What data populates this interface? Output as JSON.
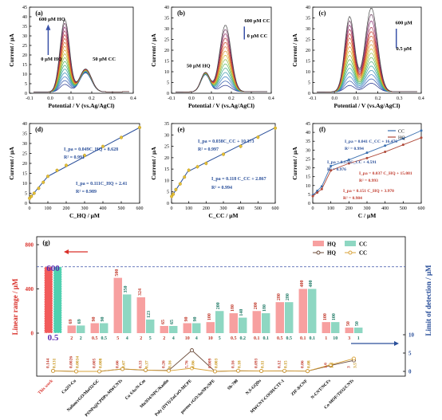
{
  "chart_data": [
    {
      "panel": "(a)",
      "type": "line",
      "xlabel": "Potential / V (vs.Ag/AgCl)",
      "ylabel": "Current / μA",
      "xlim": [
        -0.1,
        0.4
      ],
      "ylim": [
        0,
        45
      ],
      "xticks": [
        "-0.1",
        "0.0",
        "0.1",
        "0.2",
        "0.3",
        "0.4"
      ],
      "yticks": [
        "0",
        "5",
        "10",
        "15",
        "20",
        "25",
        "30",
        "35",
        "40",
        "45"
      ],
      "annotations": [
        "600 μM HQ",
        "0 μM HQ",
        "50 μM CC"
      ],
      "peak_x": [
        0.07,
        0.17
      ],
      "peak1_heights": [
        4,
        6,
        8,
        10,
        12,
        14,
        16,
        18,
        20,
        22,
        24,
        26,
        28,
        30,
        32,
        34,
        36,
        38
      ],
      "peak2_heights": [
        10,
        10.2,
        10.4,
        10.6,
        10.8,
        11,
        11.1,
        11.2,
        11.3,
        11.4,
        11.5,
        11.6,
        11.7,
        11.8,
        11.9,
        12,
        12,
        12
      ]
    },
    {
      "panel": "(b)",
      "type": "line",
      "xlabel": "Potential / V (vs.Ag/AgCl)",
      "ylabel": "Current / μA",
      "xlim": [
        -0.1,
        0.4
      ],
      "ylim": [
        0,
        40
      ],
      "xticks": [
        "-0.1",
        "0.0",
        "0.1",
        "0.2",
        "0.3",
        "0.4"
      ],
      "yticks": [
        "0",
        "5",
        "10",
        "15",
        "20",
        "25",
        "30",
        "35",
        "40"
      ],
      "annotations": [
        "600 μM CC",
        "0 μM CC",
        "50 μM HQ"
      ],
      "peak_x": [
        0.07,
        0.17
      ],
      "peak1_heights": [
        8,
        8.1,
        8.2,
        8.3,
        8.4,
        8.5,
        8.6,
        8.7,
        8.8,
        8.9,
        9,
        9,
        9,
        9,
        9
      ],
      "peak2_heights": [
        3,
        5,
        7,
        9,
        11,
        13,
        15,
        17,
        19,
        21,
        23,
        25,
        27,
        29,
        31
      ]
    },
    {
      "panel": "(c)",
      "type": "line",
      "xlabel": "Potential / V (vs.Ag/AgCl)",
      "ylabel": "Current / μA",
      "xlim": [
        -0.1,
        0.4
      ],
      "ylim": [
        0,
        40
      ],
      "xticks": [
        "-0.1",
        "0.0",
        "0.1",
        "0.2",
        "0.3",
        "0.4"
      ],
      "yticks": [
        "0",
        "5",
        "10",
        "15",
        "20",
        "25",
        "30",
        "35",
        "40"
      ],
      "annotations": [
        "600 μM",
        "0.5 μM"
      ],
      "peak_x": [
        0.07,
        0.17
      ],
      "peak1_heights": [
        3,
        5,
        7,
        9,
        11,
        13,
        15,
        17,
        19,
        21,
        23,
        25,
        27,
        29,
        31,
        33,
        35
      ],
      "peak2_heights": [
        4,
        6,
        8,
        10,
        12,
        14,
        16,
        18,
        20,
        22,
        24,
        26,
        28,
        30,
        33,
        36,
        39
      ]
    },
    {
      "panel": "(d)",
      "type": "scatter",
      "xlabel": "C_HQ / μM",
      "ylabel": "Current / μA",
      "xlim": [
        0,
        600
      ],
      "ylim": [
        0,
        40
      ],
      "xticks": [
        "0",
        "100",
        "200",
        "300",
        "400",
        "500",
        "600"
      ],
      "yticks": [
        "0",
        "5",
        "10",
        "15",
        "20",
        "25",
        "30",
        "35",
        "40"
      ],
      "x": [
        0.5,
        10,
        25,
        50,
        75,
        100,
        150,
        200,
        300,
        400,
        500,
        600
      ],
      "y": [
        2.5,
        3.5,
        5,
        7.5,
        10.5,
        13.5,
        16.5,
        19,
        24,
        28.5,
        33,
        38
      ],
      "fit_low": {
        "x": [
          0,
          100
        ],
        "y": [
          2.41,
          13.51
        ]
      },
      "fit_high": {
        "x": [
          100,
          600
        ],
        "y": [
          13.5,
          38
        ]
      },
      "equations": [
        "I_pa = 0.049C_HQ + 8.628",
        "R² = 0.991",
        "I_pa = 0.111C_HQ + 2.41",
        "R² = 0.989"
      ]
    },
    {
      "panel": "(e)",
      "type": "scatter",
      "xlabel": "C_CC / μM",
      "ylabel": "Current / μA",
      "xlim": [
        0,
        600
      ],
      "ylim": [
        0,
        35
      ],
      "xticks": [
        "0",
        "100",
        "200",
        "300",
        "400",
        "500",
        "600"
      ],
      "yticks": [
        "0",
        "5",
        "10",
        "15",
        "20",
        "25",
        "30",
        "35"
      ],
      "x": [
        0.5,
        10,
        25,
        50,
        75,
        100,
        150,
        200,
        300,
        400,
        500,
        600
      ],
      "y": [
        3,
        4,
        6,
        8.5,
        11.5,
        14.5,
        16,
        17.5,
        21.5,
        25,
        29,
        33
      ],
      "fit_low": {
        "x": [
          0,
          100
        ],
        "y": [
          2.867,
          14.667
        ]
      },
      "fit_high": {
        "x": [
          100,
          600
        ],
        "y": [
          14.1,
          33.2
        ]
      },
      "equations": [
        "I_pa = 0.038C_CC + 10.373",
        "R² = 0.997",
        "I_pa = 0.118 C_CC + 2.867",
        "R² = 0.994"
      ]
    },
    {
      "panel": "(f)",
      "type": "scatter",
      "xlabel": "C / μM",
      "ylabel": "Current / μA",
      "xlim": [
        0,
        600
      ],
      "ylim": [
        0,
        45
      ],
      "xticks": [
        "0",
        "100",
        "200",
        "300",
        "400",
        "500",
        "600"
      ],
      "yticks": [
        "0",
        "5",
        "10",
        "15",
        "20",
        "25",
        "30",
        "35",
        "40",
        "45"
      ],
      "legend": [
        "CC",
        "HQ"
      ],
      "series": [
        {
          "name": "CC",
          "color": "#3a6fb0",
          "x": [
            0.5,
            25,
            50,
            100,
            200,
            300,
            400,
            500,
            600
          ],
          "y": [
            4.6,
            7,
            9.5,
            21,
            24.5,
            28.5,
            32.5,
            36.5,
            41
          ]
        },
        {
          "name": "HQ",
          "color": "#b04a3a",
          "x": [
            0.5,
            25,
            50,
            100,
            200,
            300,
            400,
            500,
            600
          ],
          "y": [
            4,
            6,
            8,
            18.5,
            22.5,
            25.5,
            29,
            33,
            37
          ]
        }
      ],
      "equations": [
        "I_pa = 0.041 C_CC + 16.476",
        "R² = 0.994",
        "I_pa = 0.171C_CC + 4.591",
        "R² = 0.976",
        "I_pa = 0.037 C_HQ + 15.081",
        "R² = 0.993",
        "I_pa = 0.151 C_HQ + 3.970",
        "R² = 0.984"
      ]
    },
    {
      "panel": "(g)",
      "type": "bar",
      "ylabel_left": "Linear range / μM",
      "ylabel_right": "Limit of detection / μM",
      "top_axis": {
        "ylim": [
          0,
          800
        ],
        "ticks": [
          "0",
          "400",
          "800"
        ]
      },
      "bottom_axis": {
        "ylim": [
          0,
          10
        ],
        "ticks": [
          "0",
          "5",
          "10"
        ]
      },
      "legend": [
        "HQ",
        "CC",
        "HQ",
        "CC"
      ],
      "highlight": {
        "upper": "600",
        "lower": "0.5"
      },
      "categories": [
        "This work",
        "Cu2O-Cu",
        "Nafion/rGO/MoO2/GC",
        "PSNPs@CPDPs-MWCNTs",
        "Cu SAs/N-Cm",
        "Mn3O4/NPC/Kaolin",
        "Poly (DYI)/ZnCoO-MCPE",
        "porous rGO/AuNPs/SPE",
        "Sh-700",
        "N,S-GQDs",
        "MWCNT-COOH/CTF-1",
        "ZIF-8/CNF",
        "N-CNT/NCFs",
        "Co-MOF/TiO2/CNTs"
      ],
      "range_hq_max": [
        600,
        69,
        90,
        500,
        324,
        65,
        90,
        100,
        180,
        200,
        280,
        400,
        100,
        50
      ],
      "range_cc_max": [
        600,
        69,
        90,
        350,
        123,
        65,
        90,
        200,
        140,
        180,
        280,
        400,
        100,
        50
      ],
      "range_hq_min": [
        0.5,
        2,
        0.5,
        5,
        2,
        2,
        10,
        10,
        0.5,
        0.1,
        0.5,
        0.1,
        1,
        3
      ],
      "range_cc_min": [
        0.5,
        2,
        0.5,
        4,
        5,
        4,
        4,
        5,
        0.2,
        0.1,
        0.5,
        0.1,
        10,
        1
      ],
      "lod_hq": [
        0.144,
        0.0026,
        0.005,
        0.66,
        0.33,
        0.26,
        5.76,
        0.009,
        0.16,
        0.093,
        0.12,
        0.06,
        1.6,
        3
      ],
      "lod_cc": [
        0.131,
        0.0034,
        0.008,
        0.67,
        0.37,
        0.16,
        0.86,
        0.003,
        0.18,
        0.11,
        0.15,
        0.08,
        1.8,
        3.5
      ],
      "lod_labels_hq": [
        "0.144",
        "0.0026",
        "0.005",
        "0.66",
        "0.33",
        "0.26",
        "5.76",
        "0.009",
        "0.16",
        "0.093",
        "0.12",
        "0.06",
        "1.6",
        "3"
      ],
      "lod_labels_cc": [
        "0.131",
        "0.0034",
        "0.008",
        "0.67",
        "0.37",
        "0.16",
        "0.86",
        "0.003",
        "0.18",
        "0.11",
        "0.15",
        "0.08",
        "1.8",
        "3.5"
      ]
    }
  ]
}
